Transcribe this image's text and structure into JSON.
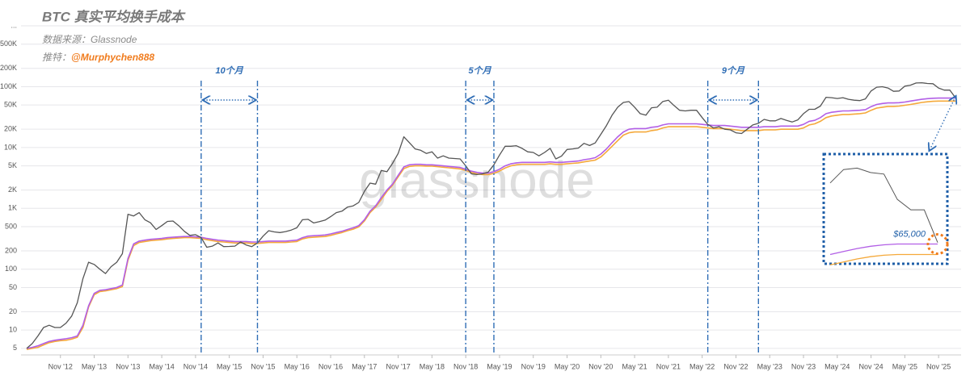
{
  "chart_data": {
    "type": "line",
    "title": "BTC 真实平均换手成本",
    "source": "数据来源：Glassnode",
    "twitter_label": "推特：",
    "twitter": "@Murphychen888",
    "watermark": "glassnode",
    "yscale": "log",
    "grid": true,
    "ylim": [
      3.9,
      1960000
    ],
    "xlim": [
      "2012-04",
      "2026-03"
    ],
    "yticks": [
      5,
      10,
      20,
      50,
      100,
      200,
      500,
      {
        "value": 1000,
        "label": "1K"
      },
      {
        "value": 2000,
        "label": "2K"
      },
      {
        "value": 5000,
        "label": "5K"
      },
      {
        "value": 10000,
        "label": "10K"
      },
      {
        "value": 20000,
        "label": "20K"
      },
      {
        "value": 50000,
        "label": "50K"
      },
      {
        "value": 100000,
        "label": "100K"
      },
      {
        "value": 200000,
        "label": "200K"
      },
      {
        "value": 500000,
        "label": "500K"
      },
      {
        "value": 1000000,
        "label": "..."
      }
    ],
    "xticks": [
      {
        "value": "2012-11",
        "label": "Nov '12"
      },
      {
        "value": "2013-05",
        "label": "May '13"
      },
      {
        "value": "2013-11",
        "label": "Nov '13"
      },
      {
        "value": "2014-05",
        "label": "May '14"
      },
      {
        "value": "2014-11",
        "label": "Nov '14"
      },
      {
        "value": "2015-05",
        "label": "May '15"
      },
      {
        "value": "2015-11",
        "label": "Nov '15"
      },
      {
        "value": "2016-05",
        "label": "May '16"
      },
      {
        "value": "2016-11",
        "label": "Nov '16"
      },
      {
        "value": "2017-05",
        "label": "May '17"
      },
      {
        "value": "2017-11",
        "label": "Nov '17"
      },
      {
        "value": "2018-05",
        "label": "May '18"
      },
      {
        "value": "2018-11",
        "label": "Nov '18"
      },
      {
        "value": "2019-05",
        "label": "May '19"
      },
      {
        "value": "2019-11",
        "label": "Nov '19"
      },
      {
        "value": "2020-05",
        "label": "May '20"
      },
      {
        "value": "2020-11",
        "label": "Nov '20"
      },
      {
        "value": "2021-05",
        "label": "May '21"
      },
      {
        "value": "2021-11",
        "label": "Nov '21"
      },
      {
        "value": "2022-05",
        "label": "May '22"
      },
      {
        "value": "2022-11",
        "label": "Nov '22"
      },
      {
        "value": "2023-05",
        "label": "May '23"
      },
      {
        "value": "2023-11",
        "label": "Nov '23"
      },
      {
        "value": "2024-05",
        "label": "May '24"
      },
      {
        "value": "2024-11",
        "label": "Nov '24"
      },
      {
        "value": "2025-05",
        "label": "May '25"
      },
      {
        "value": "2025-11",
        "label": "Nov '25"
      }
    ],
    "x": [
      "2012-05",
      "2012-06",
      "2012-07",
      "2012-08",
      "2012-09",
      "2012-10",
      "2012-11",
      "2012-12",
      "2013-01",
      "2013-02",
      "2013-03",
      "2013-04",
      "2013-05",
      "2013-06",
      "2013-07",
      "2013-08",
      "2013-09",
      "2013-10",
      "2013-11",
      "2013-12",
      "2014-01",
      "2014-02",
      "2014-03",
      "2014-04",
      "2014-05",
      "2014-06",
      "2014-07",
      "2014-08",
      "2014-09",
      "2014-10",
      "2014-11",
      "2014-12",
      "2015-01",
      "2015-02",
      "2015-03",
      "2015-04",
      "2015-05",
      "2015-06",
      "2015-07",
      "2015-08",
      "2015-09",
      "2015-10",
      "2015-11",
      "2015-12",
      "2016-01",
      "2016-02",
      "2016-03",
      "2016-04",
      "2016-05",
      "2016-06",
      "2016-07",
      "2016-08",
      "2016-09",
      "2016-10",
      "2016-11",
      "2016-12",
      "2017-01",
      "2017-02",
      "2017-03",
      "2017-04",
      "2017-05",
      "2017-06",
      "2017-07",
      "2017-08",
      "2017-09",
      "2017-10",
      "2017-11",
      "2017-12",
      "2018-01",
      "2018-02",
      "2018-03",
      "2018-04",
      "2018-05",
      "2018-06",
      "2018-07",
      "2018-08",
      "2018-09",
      "2018-10",
      "2018-11",
      "2018-12",
      "2019-01",
      "2019-02",
      "2019-03",
      "2019-04",
      "2019-05",
      "2019-06",
      "2019-07",
      "2019-08",
      "2019-09",
      "2019-10",
      "2019-11",
      "2019-12",
      "2020-01",
      "2020-02",
      "2020-03",
      "2020-04",
      "2020-05",
      "2020-06",
      "2020-07",
      "2020-08",
      "2020-09",
      "2020-10",
      "2020-11",
      "2020-12",
      "2021-01",
      "2021-02",
      "2021-03",
      "2021-04",
      "2021-05",
      "2021-06",
      "2021-07",
      "2021-08",
      "2021-09",
      "2021-10",
      "2021-11",
      "2021-12",
      "2022-01",
      "2022-02",
      "2022-03",
      "2022-04",
      "2022-05",
      "2022-06",
      "2022-07",
      "2022-08",
      "2022-09",
      "2022-10",
      "2022-11",
      "2022-12",
      "2023-01",
      "2023-02",
      "2023-03",
      "2023-04",
      "2023-05",
      "2023-06",
      "2023-07",
      "2023-08",
      "2023-09",
      "2023-10",
      "2023-11",
      "2023-12",
      "2024-01",
      "2024-02",
      "2024-03",
      "2024-04",
      "2024-05",
      "2024-06",
      "2024-07",
      "2024-08",
      "2024-09",
      "2024-10",
      "2024-11",
      "2024-12",
      "2025-01",
      "2025-02",
      "2025-03",
      "2025-04",
      "2025-05",
      "2025-06",
      "2025-07",
      "2025-08",
      "2025-09",
      "2025-10",
      "2025-11",
      "2025-12",
      "2026-01",
      "2026-02"
    ],
    "series": [
      {
        "color": "#555555",
        "values": [
          5,
          6,
          8,
          11,
          12,
          11,
          11,
          13,
          17,
          28,
          70,
          130,
          120,
          100,
          85,
          110,
          130,
          180,
          800,
          750,
          850,
          650,
          580,
          450,
          520,
          610,
          620,
          520,
          420,
          360,
          370,
          330,
          230,
          240,
          270,
          235,
          237,
          240,
          280,
          250,
          235,
          270,
          350,
          430,
          410,
          400,
          415,
          440,
          480,
          650,
          660,
          575,
          605,
          640,
          730,
          850,
          900,
          1050,
          1100,
          1250,
          1900,
          2600,
          2500,
          4200,
          4000,
          5500,
          8000,
          15000,
          12000,
          9500,
          9000,
          8000,
          8500,
          6700,
          7300,
          6700,
          6600,
          6500,
          5000,
          3700,
          3600,
          3700,
          3950,
          5200,
          7500,
          10500,
          10500,
          10700,
          9700,
          8500,
          8300,
          7300,
          8300,
          9700,
          6500,
          7200,
          9300,
          9500,
          9800,
          11700,
          10800,
          11900,
          16500,
          23000,
          34000,
          46000,
          55000,
          57000,
          46000,
          36000,
          34000,
          45000,
          46000,
          57000,
          60000,
          49000,
          41000,
          40000,
          41000,
          41000,
          31000,
          24000,
          21000,
          22000,
          20000,
          19500,
          17500,
          17000,
          20000,
          23500,
          25000,
          29000,
          27500,
          27500,
          30000,
          28000,
          26300,
          28500,
          36000,
          42500,
          42500,
          48000,
          67000,
          66000,
          64000,
          66000,
          62000,
          60000,
          59000,
          63000,
          85000,
          98000,
          100000,
          95000,
          84000,
          85000,
          102000,
          106000,
          115000,
          116000,
          113000,
          112000,
          95000,
          88000,
          88000,
          66000
        ]
      },
      {
        "color": "#b25fe6",
        "values": [
          5,
          5.2,
          5.5,
          6,
          6.5,
          6.8,
          7,
          7.2,
          7.5,
          8,
          12,
          25,
          40,
          45,
          46,
          48,
          50,
          55,
          150,
          260,
          290,
          300,
          310,
          315,
          320,
          330,
          335,
          340,
          345,
          345,
          340,
          335,
          320,
          310,
          300,
          295,
          290,
          285,
          285,
          285,
          280,
          280,
          285,
          290,
          290,
          290,
          290,
          295,
          300,
          330,
          350,
          355,
          360,
          365,
          380,
          400,
          420,
          450,
          480,
          520,
          650,
          900,
          1100,
          1500,
          2000,
          2500,
          3500,
          4800,
          5200,
          5300,
          5300,
          5200,
          5200,
          5100,
          5000,
          4900,
          4800,
          4700,
          4400,
          4100,
          3900,
          3800,
          3800,
          4000,
          4400,
          5000,
          5400,
          5600,
          5700,
          5700,
          5700,
          5700,
          5700,
          5800,
          5700,
          5700,
          5800,
          5900,
          6000,
          6300,
          6500,
          6800,
          7800,
          9500,
          12000,
          15000,
          18000,
          20000,
          20500,
          20500,
          20500,
          21500,
          22000,
          23500,
          24500,
          24500,
          24500,
          24500,
          24500,
          24500,
          24000,
          23500,
          23000,
          23000,
          23000,
          22500,
          22000,
          21500,
          21500,
          21500,
          21500,
          22000,
          22000,
          22000,
          22500,
          22500,
          22500,
          22500,
          24000,
          27000,
          28000,
          31000,
          36000,
          38000,
          39000,
          40000,
          40000,
          40500,
          41000,
          42000,
          47000,
          51000,
          53000,
          54000,
          54000,
          54500,
          56000,
          58000,
          60000,
          62000,
          63500,
          64500,
          65000,
          65000,
          65000,
          65000
        ]
      },
      {
        "color": "#f5a93a",
        "values": [
          4.8,
          5,
          5.2,
          5.7,
          6.2,
          6.5,
          6.7,
          6.8,
          7.1,
          7.6,
          11,
          24,
          38,
          43,
          44,
          46,
          48,
          52,
          140,
          245,
          275,
          285,
          295,
          300,
          305,
          315,
          320,
          325,
          330,
          330,
          325,
          320,
          305,
          295,
          285,
          280,
          275,
          270,
          270,
          270,
          265,
          265,
          270,
          275,
          275,
          275,
          275,
          280,
          285,
          315,
          330,
          335,
          340,
          345,
          360,
          380,
          400,
          430,
          455,
          495,
          620,
          850,
          1050,
          1400,
          1900,
          2400,
          3300,
          4500,
          4900,
          5000,
          5000,
          4950,
          4950,
          4850,
          4750,
          4650,
          4550,
          4450,
          4200,
          3900,
          3700,
          3600,
          3600,
          3750,
          4100,
          4600,
          5000,
          5200,
          5300,
          5300,
          5300,
          5300,
          5300,
          5400,
          5300,
          5300,
          5400,
          5500,
          5600,
          5800,
          6000,
          6200,
          7000,
          8500,
          10500,
          13000,
          16000,
          17500,
          18000,
          18000,
          18000,
          19000,
          19500,
          21000,
          22000,
          22000,
          22000,
          22000,
          22000,
          22000,
          21500,
          21000,
          20500,
          20500,
          20500,
          20000,
          19500,
          19000,
          19000,
          19000,
          19000,
          19500,
          19500,
          19500,
          20000,
          20000,
          20000,
          20000,
          21000,
          23500,
          24500,
          27000,
          31000,
          33000,
          34000,
          35000,
          35000,
          35500,
          36000,
          37000,
          41000,
          44500,
          46000,
          47500,
          47500,
          48000,
          49500,
          51000,
          53000,
          55000,
          56500,
          57500,
          58000,
          58000,
          58000,
          58000
        ]
      }
    ],
    "periods": [
      {
        "label": "10个月",
        "start": "2014-12",
        "end": "2015-10"
      },
      {
        "label": "5个月",
        "start": "2018-11",
        "end": "2019-04"
      },
      {
        "label": "9个月",
        "start": "2022-06",
        "end": "2023-03"
      }
    ],
    "inset": {
      "label": "$65,000",
      "value": 65000,
      "xlim": [
        "2025-06",
        "2026-02"
      ],
      "ylim": [
        55000,
        120000
      ]
    }
  }
}
